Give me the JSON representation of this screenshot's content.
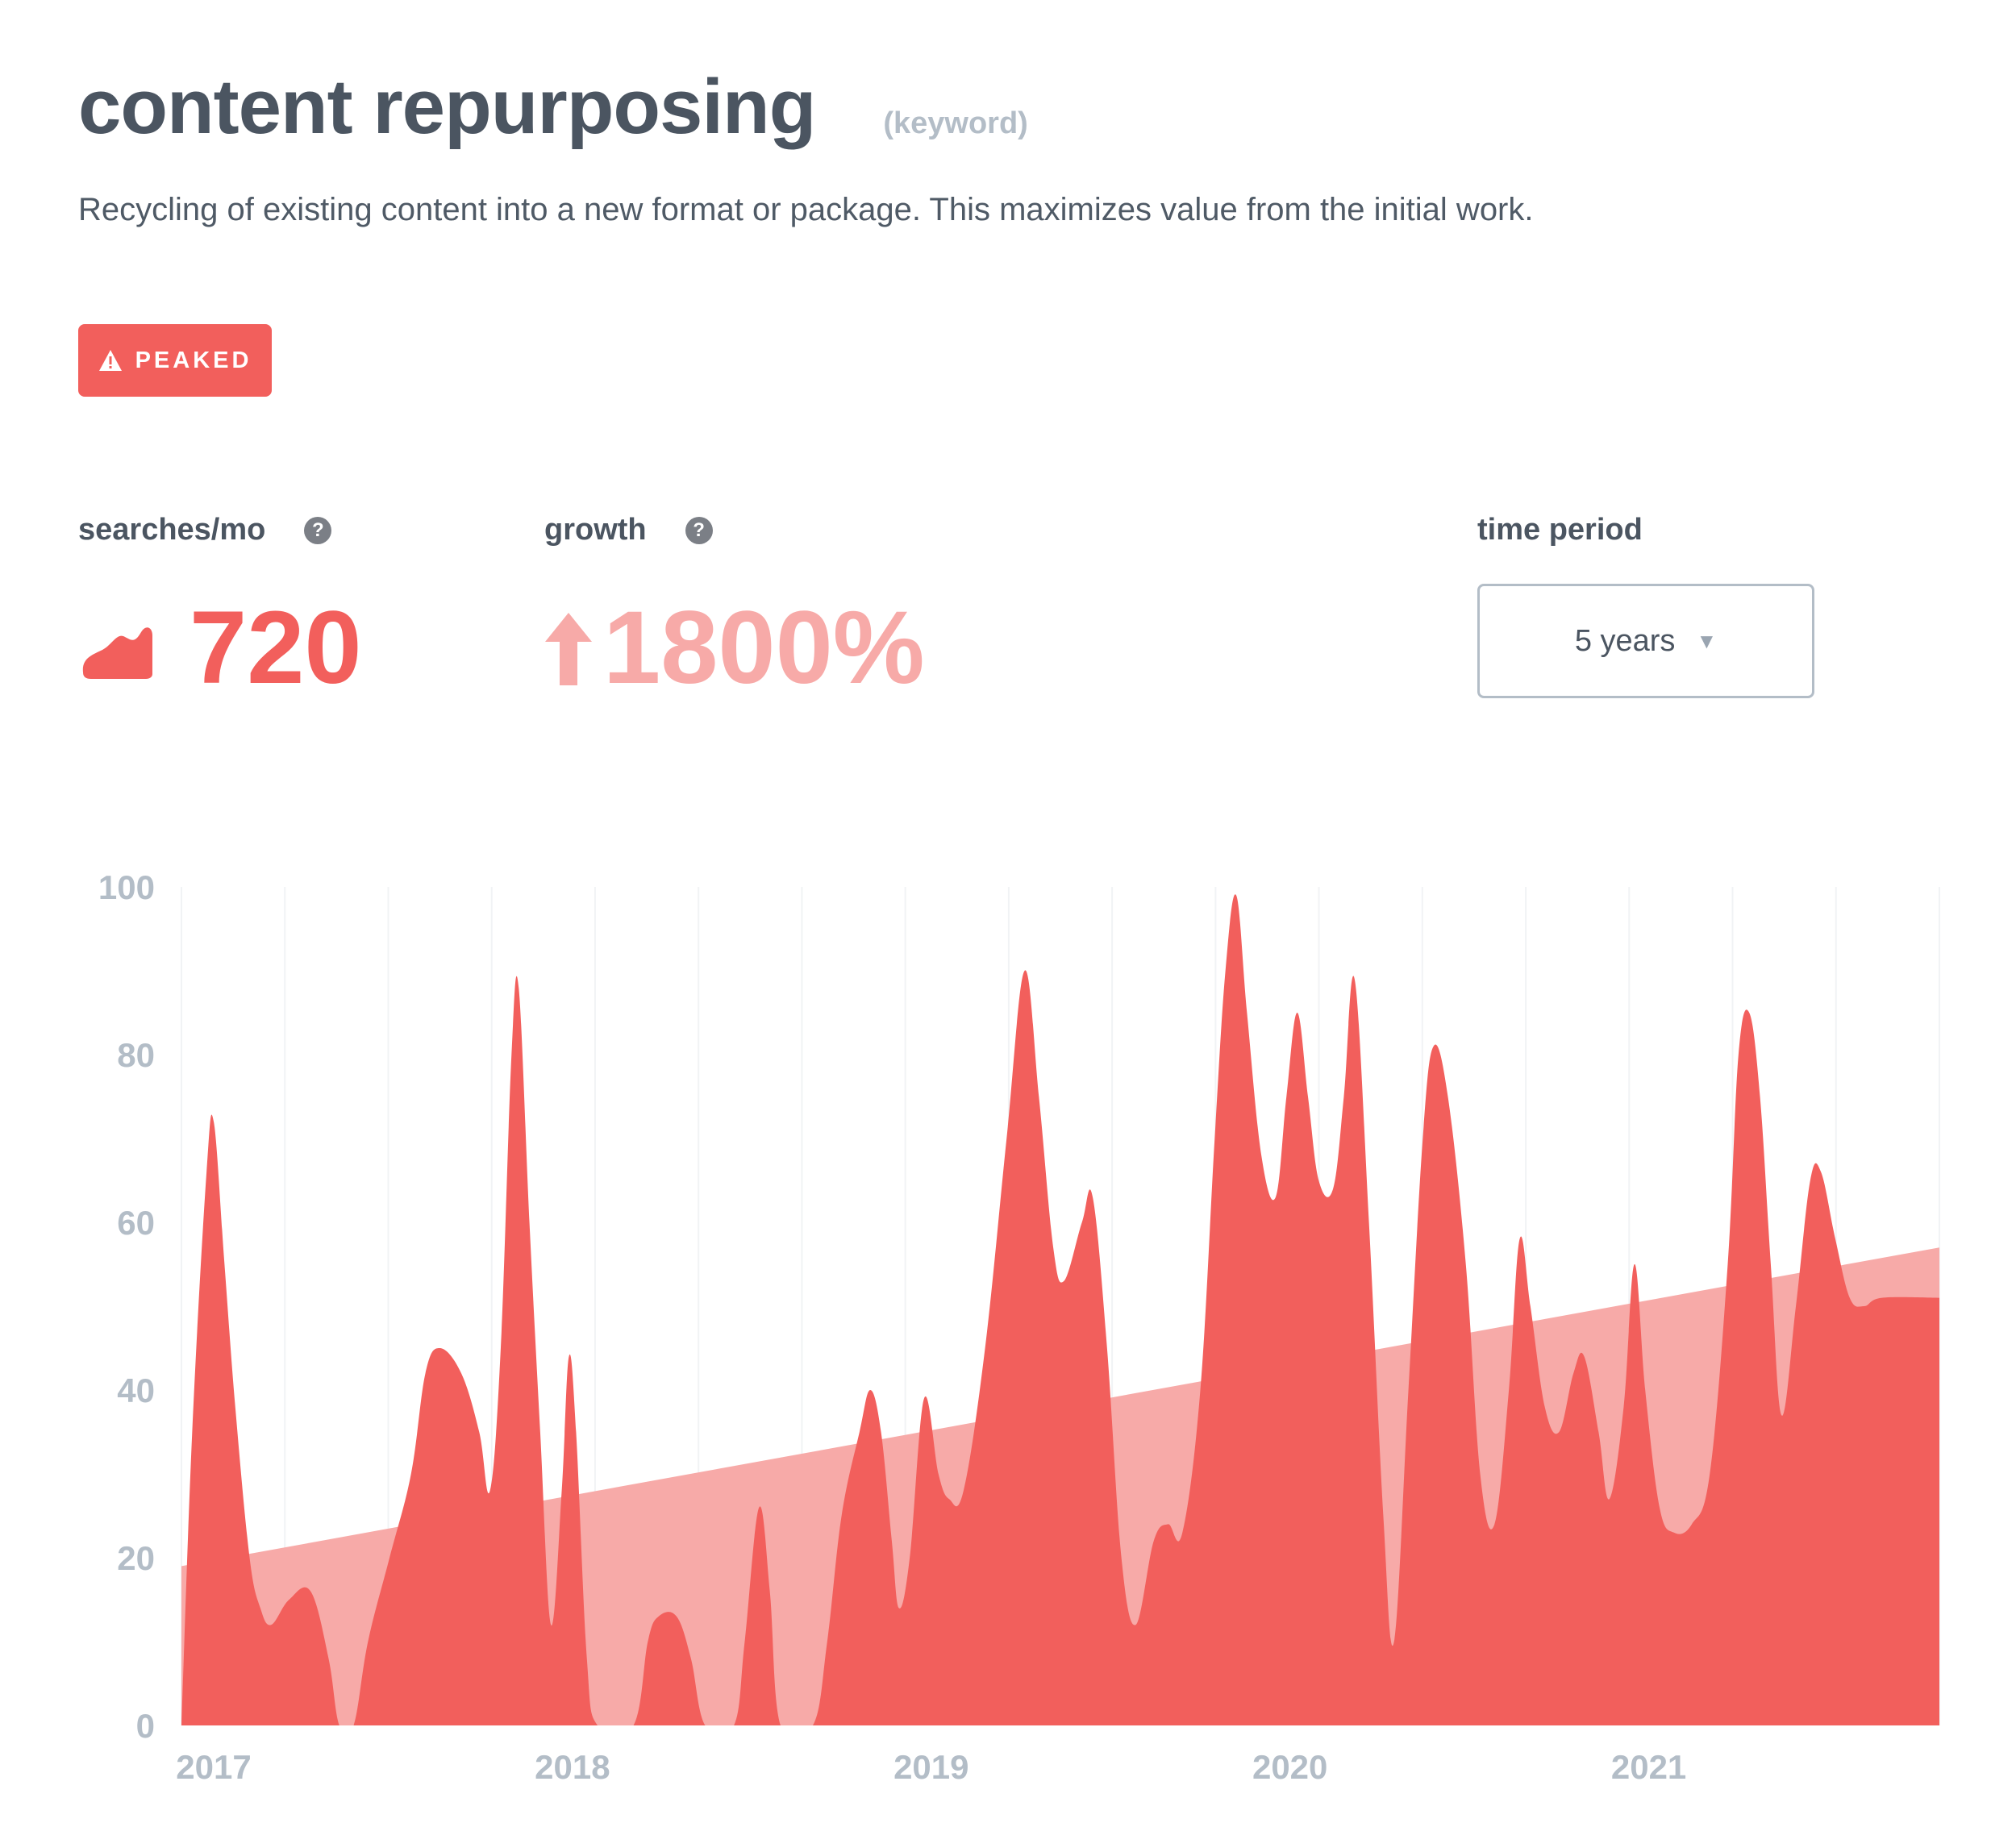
{
  "header": {
    "title": "content repurposing",
    "kind": "(keyword)",
    "description": "Recycling of existing content into a new format or package. This maximizes value from the initial work."
  },
  "badge": {
    "label": "PEAKED",
    "icon": "warning-triangle-icon",
    "color": "#f25f5c"
  },
  "stats": {
    "searches_label": "searches/mo",
    "searches_value": "720",
    "growth_label": "growth",
    "growth_value": "1800%",
    "help_glyph": "?"
  },
  "time_period": {
    "label": "time period",
    "selected": "5 years"
  },
  "colors": {
    "area": "#f25f5c",
    "trend": "#f7aaa8",
    "axis": "#b3bdc7",
    "text": "#4b5561"
  },
  "chart_data": {
    "type": "area",
    "title": "",
    "xlabel": "",
    "ylabel": "",
    "ylim": [
      0,
      100
    ],
    "yticks": [
      0,
      20,
      40,
      60,
      80,
      100
    ],
    "xlim": [
      2017.0,
      2021.9
    ],
    "xticks": [
      {
        "value": 2017.0,
        "label": "2017"
      },
      {
        "value": 2018.0,
        "label": "2018"
      },
      {
        "value": 2019.0,
        "label": "2019"
      },
      {
        "value": 2020.0,
        "label": "2020"
      },
      {
        "value": 2021.0,
        "label": "2021"
      }
    ],
    "grid": "vertical-light",
    "series": [
      {
        "values": [
          [
            2017.0,
            0
          ],
          [
            2017.03,
            35
          ],
          [
            2017.07,
            66
          ],
          [
            2017.09,
            72
          ],
          [
            2017.12,
            55
          ],
          [
            2017.15,
            38
          ],
          [
            2017.19,
            20
          ],
          [
            2017.22,
            14
          ],
          [
            2017.25,
            12
          ],
          [
            2017.3,
            15
          ],
          [
            2017.36,
            16
          ],
          [
            2017.41,
            8
          ],
          [
            2017.44,
            0
          ],
          [
            2017.48,
            0
          ],
          [
            2017.52,
            10
          ],
          [
            2017.58,
            20
          ],
          [
            2017.64,
            30
          ],
          [
            2017.68,
            42
          ],
          [
            2017.72,
            45
          ],
          [
            2017.78,
            42
          ],
          [
            2017.83,
            35
          ],
          [
            2017.86,
            28
          ],
          [
            2017.89,
            45
          ],
          [
            2017.92,
            80
          ],
          [
            2017.94,
            88
          ],
          [
            2017.97,
            60
          ],
          [
            2018.0,
            35
          ],
          [
            2018.03,
            12
          ],
          [
            2018.06,
            28
          ],
          [
            2018.08,
            44
          ],
          [
            2018.1,
            35
          ],
          [
            2018.13,
            8
          ],
          [
            2018.16,
            0
          ],
          [
            2018.26,
            0
          ],
          [
            2018.3,
            10
          ],
          [
            2018.33,
            13
          ],
          [
            2018.38,
            13
          ],
          [
            2018.42,
            8
          ],
          [
            2018.46,
            0
          ],
          [
            2018.54,
            0
          ],
          [
            2018.57,
            10
          ],
          [
            2018.61,
            26
          ],
          [
            2018.64,
            16
          ],
          [
            2018.67,
            0
          ],
          [
            2018.76,
            0
          ],
          [
            2018.8,
            10
          ],
          [
            2018.84,
            25
          ],
          [
            2018.89,
            35
          ],
          [
            2018.92,
            40
          ],
          [
            2018.95,
            35
          ],
          [
            2018.98,
            22
          ],
          [
            2019.0,
            14
          ],
          [
            2019.03,
            20
          ],
          [
            2019.07,
            39
          ],
          [
            2019.11,
            30
          ],
          [
            2019.14,
            27
          ],
          [
            2019.18,
            28
          ],
          [
            2019.24,
            45
          ],
          [
            2019.3,
            70
          ],
          [
            2019.35,
            90
          ],
          [
            2019.39,
            75
          ],
          [
            2019.43,
            57
          ],
          [
            2019.46,
            53
          ],
          [
            2019.51,
            60
          ],
          [
            2019.54,
            63
          ],
          [
            2019.58,
            45
          ],
          [
            2019.62,
            20
          ],
          [
            2019.66,
            12
          ],
          [
            2019.71,
            22
          ],
          [
            2019.75,
            24
          ],
          [
            2019.79,
            23
          ],
          [
            2019.84,
            40
          ],
          [
            2019.88,
            70
          ],
          [
            2019.91,
            90
          ],
          [
            2019.94,
            99
          ],
          [
            2019.97,
            85
          ],
          [
            2020.01,
            68
          ],
          [
            2020.05,
            63
          ],
          [
            2020.08,
            75
          ],
          [
            2020.11,
            85
          ],
          [
            2020.14,
            75
          ],
          [
            2020.17,
            65
          ],
          [
            2020.21,
            64
          ],
          [
            2020.24,
            75
          ],
          [
            2020.27,
            89
          ],
          [
            2020.31,
            60
          ],
          [
            2020.35,
            25
          ],
          [
            2020.38,
            10
          ],
          [
            2020.42,
            40
          ],
          [
            2020.46,
            70
          ],
          [
            2020.49,
            81
          ],
          [
            2020.53,
            75
          ],
          [
            2020.58,
            55
          ],
          [
            2020.62,
            30
          ],
          [
            2020.66,
            24
          ],
          [
            2020.7,
            40
          ],
          [
            2020.73,
            58
          ],
          [
            2020.76,
            50
          ],
          [
            2020.8,
            38
          ],
          [
            2020.84,
            35
          ],
          [
            2020.88,
            42
          ],
          [
            2020.91,
            44
          ],
          [
            2020.95,
            35
          ],
          [
            2020.98,
            27
          ],
          [
            2021.02,
            38
          ],
          [
            2021.05,
            55
          ],
          [
            2021.08,
            40
          ],
          [
            2021.12,
            26
          ],
          [
            2021.16,
            23
          ],
          [
            2021.21,
            24
          ],
          [
            2021.26,
            30
          ],
          [
            2021.31,
            55
          ],
          [
            2021.34,
            80
          ],
          [
            2021.37,
            85
          ],
          [
            2021.4,
            75
          ],
          [
            2021.43,
            55
          ],
          [
            2021.46,
            37
          ],
          [
            2021.5,
            50
          ],
          [
            2021.54,
            65
          ],
          [
            2021.57,
            66
          ],
          [
            2021.61,
            58
          ],
          [
            2021.65,
            51
          ],
          [
            2021.69,
            50
          ],
          [
            2021.74,
            51
          ],
          [
            2021.9,
            51
          ]
        ]
      }
    ],
    "trend": {
      "start": [
        2017.0,
        19
      ],
      "end": [
        2021.9,
        57
      ]
    }
  }
}
